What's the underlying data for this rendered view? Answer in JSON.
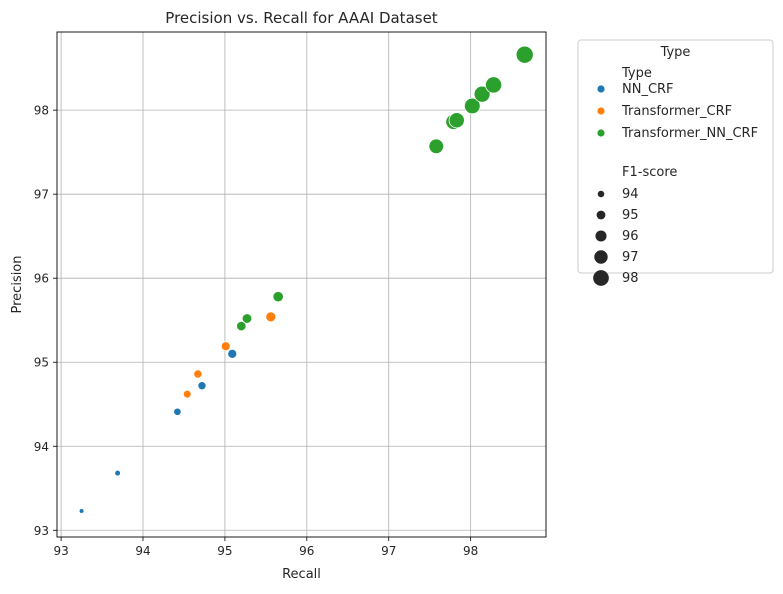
{
  "chart_data": {
    "type": "scatter",
    "title": "Precision vs. Recall for AAAI Dataset",
    "xlabel": "Recall",
    "ylabel": "Precision",
    "xlim": [
      92.95,
      98.92
    ],
    "ylim": [
      92.92,
      98.93
    ],
    "xticks": [
      93,
      94,
      95,
      96,
      97,
      98
    ],
    "yticks": [
      93,
      94,
      95,
      96,
      97,
      98
    ],
    "grid": true,
    "legend": {
      "title": "Type",
      "position": "outside-right",
      "hue_title": "Type",
      "size_title": "F1-score",
      "size_levels": [
        94,
        95,
        96,
        97,
        98
      ]
    },
    "series": [
      {
        "name": "NN_CRF",
        "color": "#1f77b4",
        "points": [
          {
            "x": 93.25,
            "y": 93.23,
            "f1": 93.24
          },
          {
            "x": 93.69,
            "y": 93.68,
            "f1": 93.68
          },
          {
            "x": 94.42,
            "y": 94.41,
            "f1": 94.42
          },
          {
            "x": 94.72,
            "y": 94.72,
            "f1": 94.72
          },
          {
            "x": 95.09,
            "y": 95.1,
            "f1": 95.1
          }
        ]
      },
      {
        "name": "Transformer_CRF",
        "color": "#ff7f0e",
        "points": [
          {
            "x": 94.54,
            "y": 94.62,
            "f1": 94.58
          },
          {
            "x": 94.67,
            "y": 94.86,
            "f1": 94.76
          },
          {
            "x": 95.01,
            "y": 95.19,
            "f1": 95.1
          },
          {
            "x": 95.56,
            "y": 95.54,
            "f1": 95.55
          }
        ]
      },
      {
        "name": "Transformer_NN_CRF",
        "color": "#2ca02c",
        "points": [
          {
            "x": 95.2,
            "y": 95.43,
            "f1": 95.31
          },
          {
            "x": 95.27,
            "y": 95.52,
            "f1": 95.39
          },
          {
            "x": 95.65,
            "y": 95.78,
            "f1": 95.71
          },
          {
            "x": 97.58,
            "y": 97.57,
            "f1": 97.57
          },
          {
            "x": 97.79,
            "y": 97.86,
            "f1": 97.82
          },
          {
            "x": 97.83,
            "y": 97.88,
            "f1": 97.85
          },
          {
            "x": 98.02,
            "y": 98.05,
            "f1": 98.03
          },
          {
            "x": 98.14,
            "y": 98.19,
            "f1": 98.16
          },
          {
            "x": 98.28,
            "y": 98.3,
            "f1": 98.29
          },
          {
            "x": 98.66,
            "y": 98.66,
            "f1": 98.66
          }
        ]
      }
    ]
  }
}
